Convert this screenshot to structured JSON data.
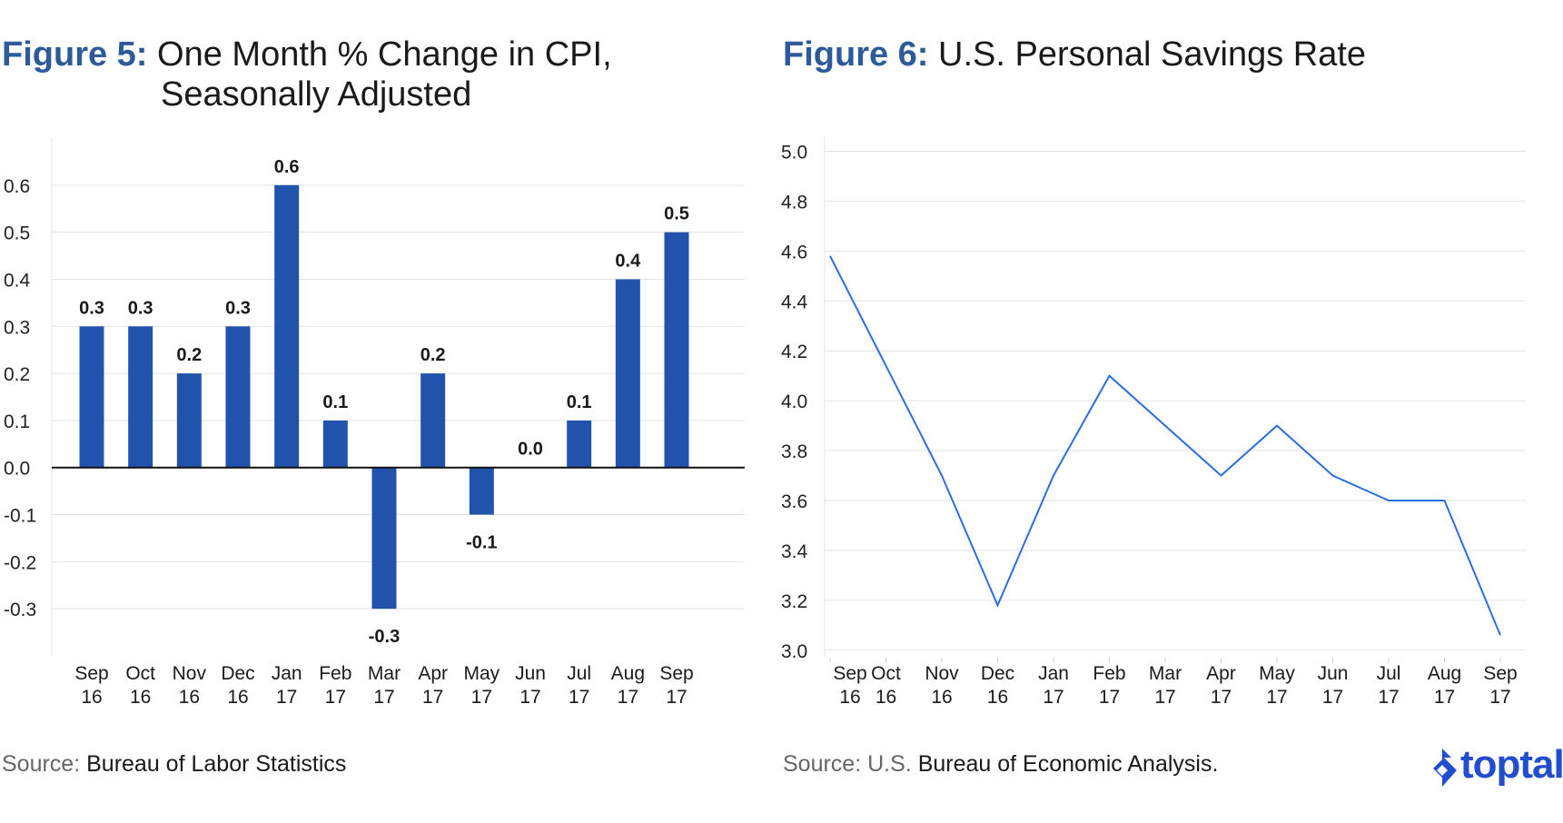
{
  "figure5": {
    "label": "Figure 5:",
    "title_line1": "One Month % Change in CPI,",
    "title_line2": "Seasonally Adjusted",
    "source_label": "Source:",
    "source_text": "Bureau of Labor Statistics"
  },
  "figure6": {
    "label": "Figure 6:",
    "title": "U.S. Personal Savings Rate",
    "source_label": "Source: U.S.",
    "source_text": "Bureau of Economic Analysis."
  },
  "logo": {
    "text": "toptal",
    "color": "#204ecf"
  },
  "chart_data": [
    {
      "type": "bar",
      "title": "One Month % Change in CPI, Seasonally Adjusted",
      "categories": [
        [
          "Sep",
          "16"
        ],
        [
          "Oct",
          "16"
        ],
        [
          "Nov",
          "16"
        ],
        [
          "Dec",
          "16"
        ],
        [
          "Jan",
          "17"
        ],
        [
          "Feb",
          "17"
        ],
        [
          "Mar",
          "17"
        ],
        [
          "Apr",
          "17"
        ],
        [
          "May",
          "17"
        ],
        [
          "Jun",
          "17"
        ],
        [
          "Jul",
          "17"
        ],
        [
          "Aug",
          "17"
        ],
        [
          "Sep",
          "17"
        ]
      ],
      "values": [
        0.3,
        0.3,
        0.2,
        0.3,
        0.6,
        0.1,
        -0.3,
        0.2,
        -0.1,
        0.0,
        0.1,
        0.4,
        0.5
      ],
      "data_labels": [
        "0.3",
        "0.3",
        "0.2",
        "0.3",
        "0.6",
        "0.1",
        "-0.3",
        "0.2",
        "-0.1",
        "0.0",
        "0.1",
        "0.4",
        "0.5"
      ],
      "yticks": [
        0.6,
        0.5,
        0.4,
        0.3,
        0.2,
        0.1,
        0.0,
        -0.1,
        -0.2,
        -0.3
      ],
      "ytick_labels": [
        "0.6",
        "0.5",
        "0.4",
        "0.3",
        "0.2",
        "0.1",
        "0.0",
        "-0.1",
        "-0.2",
        "-0.3"
      ],
      "ylim": [
        -0.4,
        0.7
      ],
      "grid": true,
      "bar_color": "#2253ac",
      "source": "Source: Bureau of Labor Statistics"
    },
    {
      "type": "line",
      "title": "U.S. Personal Savings Rate",
      "categories": [
        [
          "Sep",
          "16"
        ],
        [
          "Oct",
          "16"
        ],
        [
          "Nov",
          "16"
        ],
        [
          "Dec",
          "16"
        ],
        [
          "Jan",
          "17"
        ],
        [
          "Feb",
          "17"
        ],
        [
          "Mar",
          "17"
        ],
        [
          "Apr",
          "17"
        ],
        [
          "May",
          "17"
        ],
        [
          "Jun",
          "17"
        ],
        [
          "Jul",
          "17"
        ],
        [
          "Aug",
          "17"
        ],
        [
          "Sep",
          "17"
        ]
      ],
      "values": [
        4.58,
        4.14,
        3.7,
        3.18,
        3.7,
        4.1,
        3.9,
        3.7,
        3.9,
        3.7,
        3.6,
        3.6,
        3.06
      ],
      "yticks": [
        5.0,
        4.8,
        4.6,
        4.4,
        4.2,
        4.0,
        3.8,
        3.6,
        3.4,
        3.2,
        3.0
      ],
      "ytick_labels": [
        "5.0",
        "4.8",
        "4.6",
        "4.4",
        "4.2",
        "4.0",
        "3.8",
        "3.6",
        "3.4",
        "3.2",
        "3.0"
      ],
      "ylim": [
        3.0,
        5.0
      ],
      "grid": true,
      "line_color": "#2c6ddf",
      "source": "Source: U.S. Bureau of Economic Analysis."
    }
  ]
}
